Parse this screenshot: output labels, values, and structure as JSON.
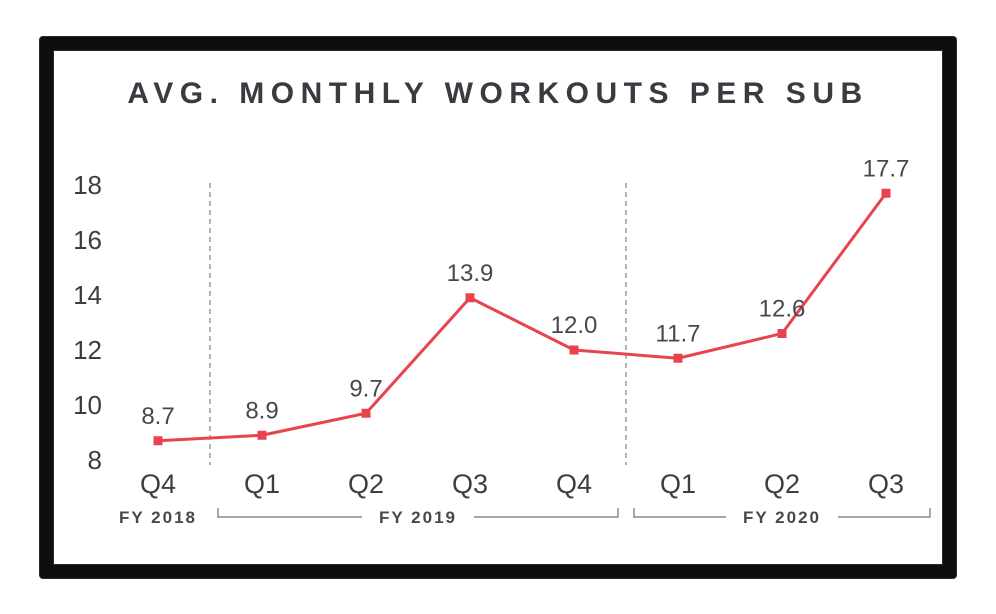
{
  "frame": {
    "border_color": "#0e0e0e",
    "background": "#ffffff"
  },
  "theme": {
    "axis_text": "#3d3e43",
    "value_text": "#47484d",
    "divider": "#9b9ba3",
    "bracket": "#8b8b91"
  },
  "chart_data": {
    "type": "line",
    "title": "AVG. MONTHLY WORKOUTS PER SUB",
    "categories": [
      "Q4",
      "Q1",
      "Q2",
      "Q3",
      "Q4",
      "Q1",
      "Q2",
      "Q3"
    ],
    "values": [
      8.7,
      8.9,
      9.7,
      13.9,
      12.0,
      11.7,
      12.6,
      17.7
    ],
    "value_labels": [
      "8.7",
      "8.9",
      "9.7",
      "13.9",
      "12.0",
      "11.7",
      "12.6",
      "17.7"
    ],
    "y_ticks": [
      8,
      10,
      12,
      14,
      16,
      18
    ],
    "ylim": [
      8,
      18
    ],
    "xlabel": "",
    "ylabel": "",
    "grid": false,
    "legend": "none",
    "line_color": "#e8444e",
    "marker": "square",
    "divider_after_index": [
      0,
      4
    ],
    "fiscal_groups": [
      {
        "label": "FY 2018",
        "start": 0,
        "end": 0,
        "bracket": false
      },
      {
        "label": "FY 2019",
        "start": 1,
        "end": 4,
        "bracket": true
      },
      {
        "label": "FY 2020",
        "start": 5,
        "end": 7,
        "bracket": true
      }
    ]
  }
}
